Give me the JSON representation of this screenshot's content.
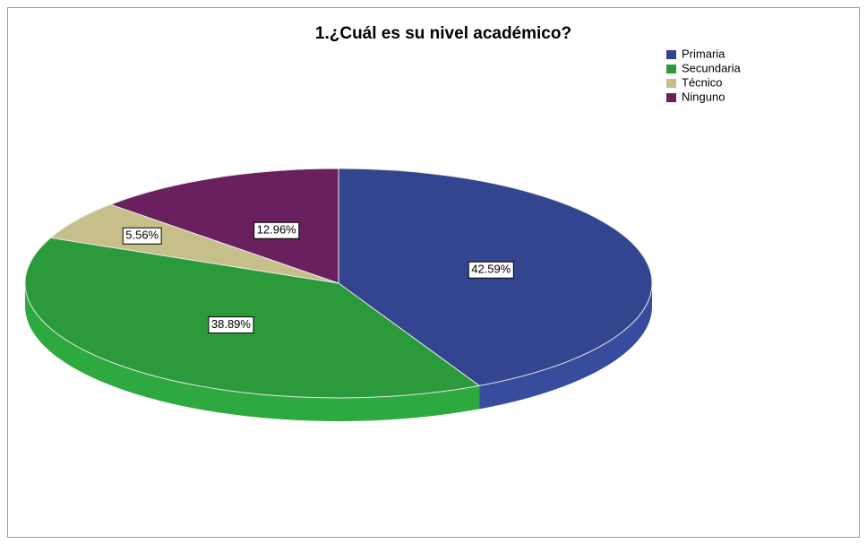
{
  "chart_data": {
    "type": "pie",
    "title": "1.¿Cuál es su nivel académico?",
    "categories": [
      "Primaria",
      "Secundaria",
      "Técnico",
      "Ninguno"
    ],
    "values": [
      42.59,
      38.89,
      5.56,
      12.96
    ],
    "value_labels": [
      "42.59%",
      "38.89%",
      "5.56%",
      "12.96%"
    ],
    "colors": [
      "#33458f",
      "#2a9a3a",
      "#c6bf8a",
      "#6a1f5f"
    ],
    "legend": "top-right"
  }
}
